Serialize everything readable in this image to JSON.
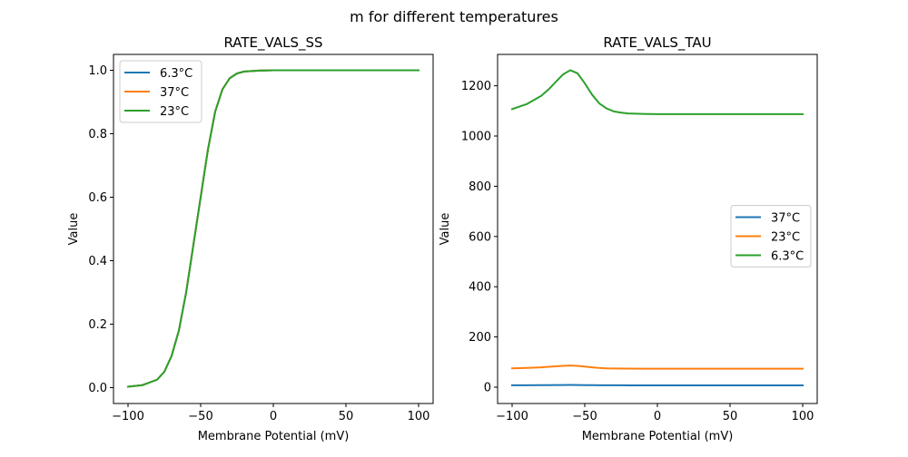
{
  "figure_title": "m for different temperatures",
  "colors": {
    "blue": "#1f77b4",
    "orange": "#ff7f0e",
    "green": "#2ca02c"
  },
  "chart_data": [
    {
      "type": "line",
      "title": "RATE_VALS_SS",
      "xlabel": "Membrane Potential (mV)",
      "ylabel": "Value",
      "xlim": [
        -110,
        110
      ],
      "ylim": [
        -0.05,
        1.05
      ],
      "xticks": [
        -100,
        -50,
        0,
        50,
        100
      ],
      "xtick_labels": [
        "−100",
        "−50",
        "0",
        "50",
        "100"
      ],
      "yticks": [
        0.0,
        0.2,
        0.4,
        0.6,
        0.8,
        1.0
      ],
      "ytick_labels": [
        "0.0",
        "0.2",
        "0.4",
        "0.6",
        "0.8",
        "1.0"
      ],
      "legend_position": "upper-left",
      "grid": false,
      "x": [
        -100,
        -90,
        -80,
        -75,
        -70,
        -65,
        -60,
        -55,
        -50,
        -45,
        -40,
        -35,
        -30,
        -25,
        -20,
        -10,
        0,
        25,
        50,
        75,
        100
      ],
      "series": [
        {
          "name": "6.3°C",
          "color": "#1f77b4",
          "values": [
            0.003,
            0.008,
            0.025,
            0.05,
            0.1,
            0.18,
            0.3,
            0.45,
            0.6,
            0.75,
            0.87,
            0.94,
            0.975,
            0.99,
            0.996,
            0.999,
            1.0,
            1.0,
            1.0,
            1.0,
            1.0
          ]
        },
        {
          "name": "37°C",
          "color": "#ff7f0e",
          "values": [
            0.003,
            0.008,
            0.025,
            0.05,
            0.1,
            0.18,
            0.3,
            0.45,
            0.6,
            0.75,
            0.87,
            0.94,
            0.975,
            0.99,
            0.996,
            0.999,
            1.0,
            1.0,
            1.0,
            1.0,
            1.0
          ]
        },
        {
          "name": "23°C",
          "color": "#2ca02c",
          "values": [
            0.003,
            0.008,
            0.025,
            0.05,
            0.1,
            0.18,
            0.3,
            0.45,
            0.6,
            0.75,
            0.87,
            0.94,
            0.975,
            0.99,
            0.996,
            0.999,
            1.0,
            1.0,
            1.0,
            1.0,
            1.0
          ]
        }
      ]
    },
    {
      "type": "line",
      "title": "RATE_VALS_TAU",
      "xlabel": "Membrane Potential (mV)",
      "ylabel": "Value",
      "xlim": [
        -110,
        110
      ],
      "ylim": [
        -65,
        1325
      ],
      "xticks": [
        -100,
        -50,
        0,
        50,
        100
      ],
      "xtick_labels": [
        "−100",
        "−50",
        "0",
        "50",
        "100"
      ],
      "yticks": [
        0,
        200,
        400,
        600,
        800,
        1000,
        1200
      ],
      "ytick_labels": [
        "0",
        "200",
        "400",
        "600",
        "800",
        "1000",
        "1200"
      ],
      "legend_position": "center-right",
      "grid": false,
      "x": [
        -100,
        -90,
        -80,
        -75,
        -70,
        -65,
        -60,
        -55,
        -50,
        -45,
        -40,
        -35,
        -30,
        -25,
        -20,
        -10,
        0,
        25,
        50,
        75,
        100
      ],
      "series": [
        {
          "name": "37°C",
          "color": "#1f77b4",
          "values": [
            7.5,
            7.6,
            7.9,
            8.2,
            8.5,
            8.7,
            8.8,
            8.6,
            8.2,
            7.9,
            7.7,
            7.6,
            7.5,
            7.45,
            7.4,
            7.4,
            7.4,
            7.4,
            7.4,
            7.4,
            7.4
          ]
        },
        {
          "name": "23°C",
          "color": "#ff7f0e",
          "values": [
            75,
            76.5,
            79,
            81,
            83,
            85,
            86,
            85,
            82,
            79,
            76.5,
            75,
            74.3,
            74,
            73.8,
            73.6,
            73.5,
            73.5,
            73.5,
            73.5,
            73.5
          ]
        },
        {
          "name": "6.3°C",
          "color": "#2ca02c",
          "values": [
            1107,
            1127,
            1160,
            1185,
            1215,
            1245,
            1262,
            1250,
            1210,
            1165,
            1130,
            1110,
            1098,
            1093,
            1090,
            1088,
            1087,
            1087,
            1087,
            1087,
            1087
          ]
        }
      ]
    }
  ]
}
